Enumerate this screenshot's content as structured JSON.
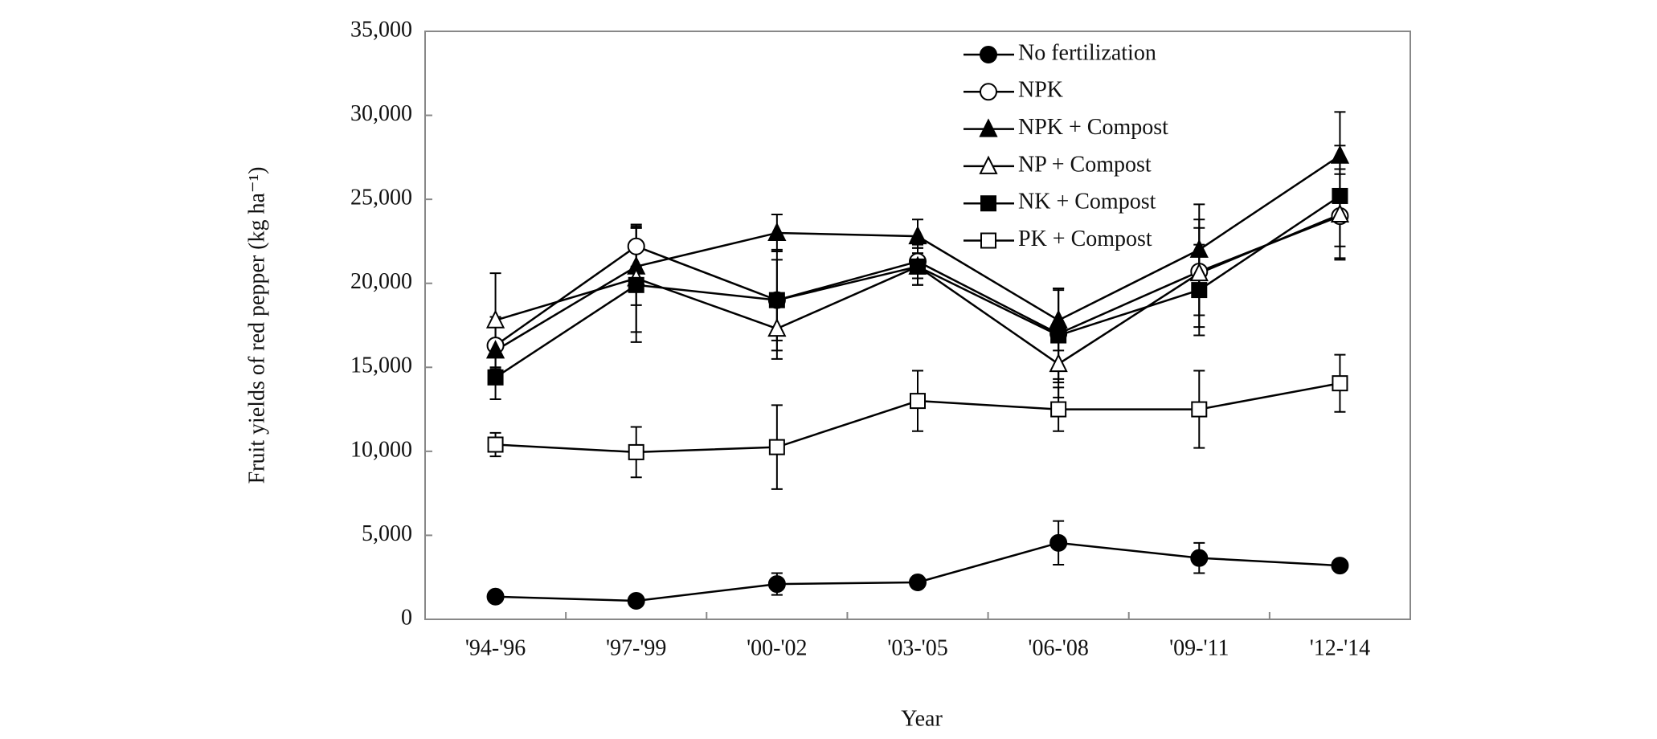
{
  "chart_data": {
    "type": "line",
    "x_label": "Year",
    "y_label": "Fruit yields of red pepper (kg ha⁻¹)",
    "categories": [
      "'94-'96",
      "'97-'99",
      "'00-'02",
      "'03-'05",
      "'06-'08",
      "'09-'11",
      "'12-'14"
    ],
    "ylim": [
      0,
      35000
    ],
    "yticks": [
      0,
      {
        "value": 5000,
        "label": "5,000"
      },
      {
        "value": 10000,
        "label": "10,000"
      },
      {
        "value": 15000,
        "label": "15,000"
      },
      {
        "value": 20000,
        "label": "20,000"
      },
      {
        "value": 25000,
        "label": "25,000"
      },
      {
        "value": 30000,
        "label": "30,000"
      },
      {
        "value": 35000,
        "label": "35,000"
      }
    ],
    "legend_position": "upper right",
    "series": [
      {
        "name": "No fertilization",
        "color": "#000000",
        "marker": "circle",
        "filled": true,
        "values": [
          1350,
          1100,
          2100,
          2200,
          4550,
          3650,
          3200
        ],
        "errors": [
          200,
          150,
          650,
          200,
          1300,
          900,
          200
        ]
      },
      {
        "name": "NPK",
        "color": "#000000",
        "marker": "circle",
        "filled": false,
        "values": [
          16300,
          22200,
          19000,
          21300,
          17000,
          20700,
          24000
        ],
        "errors": [
          1400,
          1200,
          2400,
          1000,
          2700,
          2600,
          2500
        ]
      },
      {
        "name": "NPK + Compost",
        "color": "#000000",
        "marker": "triangle",
        "filled": true,
        "values": [
          16000,
          21000,
          23000,
          22800,
          17800,
          22000,
          27600
        ],
        "errors": [
          2000,
          2300,
          1100,
          1000,
          1800,
          2700,
          2600
        ]
      },
      {
        "name": "NP + Compost",
        "color": "#000000",
        "marker": "triangle",
        "filled": false,
        "values": [
          17800,
          20300,
          17300,
          21000,
          15200,
          20600,
          24100
        ],
        "errors": [
          2800,
          3200,
          1800,
          1100,
          2000,
          3200,
          2700
        ]
      },
      {
        "name": "NK + Compost",
        "color": "#000000",
        "marker": "square",
        "filled": true,
        "values": [
          14400,
          19900,
          19000,
          21000,
          16900,
          19600,
          25200
        ],
        "errors": [
          1300,
          3400,
          3000,
          1100,
          2800,
          2700,
          3000
        ]
      },
      {
        "name": "PK + Compost",
        "color": "#000000",
        "marker": "square",
        "filled": false,
        "values": [
          10400,
          9950,
          10250,
          13000,
          12500,
          12500,
          14050
        ],
        "errors": [
          700,
          1500,
          2500,
          1800,
          1300,
          2300,
          1700
        ]
      }
    ]
  }
}
